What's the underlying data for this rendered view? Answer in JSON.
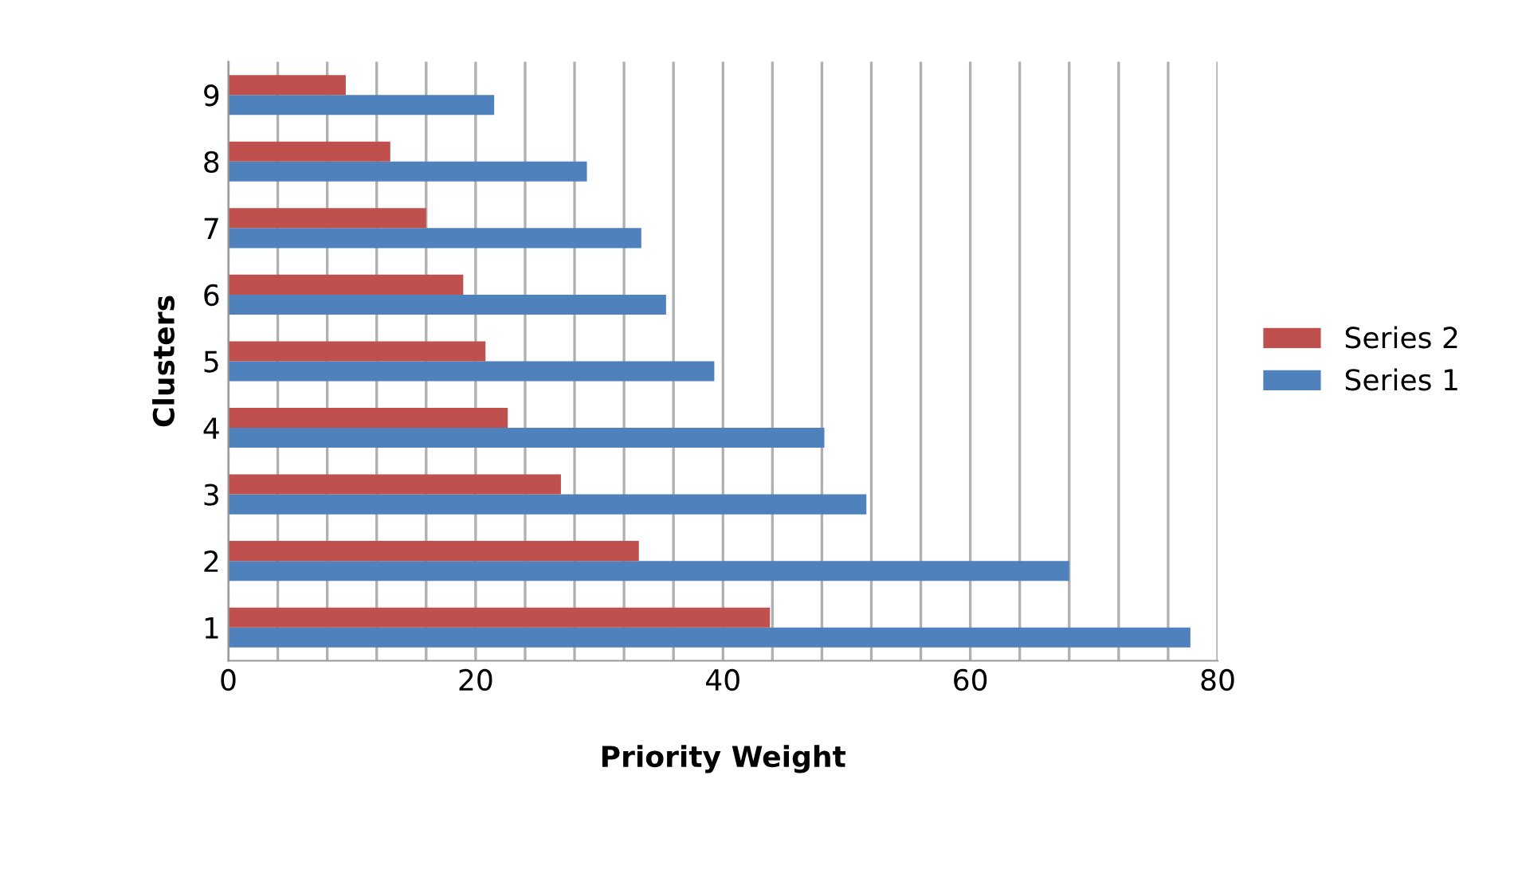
{
  "chart_data": {
    "type": "bar",
    "orientation": "horizontal",
    "xlabel": "Priority Weight",
    "ylabel": "Clusters",
    "categories": [
      "9",
      "8",
      "7",
      "6",
      "5",
      "4",
      "3",
      "2",
      "1"
    ],
    "series": [
      {
        "name": "Series 1",
        "color": "#4f81bd",
        "values": [
          21.5,
          29.0,
          33.4,
          35.4,
          39.3,
          48.2,
          51.6,
          68.0,
          77.8
        ]
      },
      {
        "name": "Series 2",
        "color": "#c0504d",
        "values": [
          9.5,
          13.1,
          16.0,
          19.0,
          20.8,
          22.6,
          26.9,
          33.2,
          43.8
        ]
      }
    ],
    "xlim": [
      0,
      80
    ],
    "xticks": [
      0,
      {
        "value": 4,
        "label": null
      },
      {
        "value": 8,
        "label": null
      },
      {
        "value": 12,
        "label": null
      },
      {
        "value": 16,
        "label": null
      },
      20,
      {
        "value": 24,
        "label": null
      },
      {
        "value": 28,
        "label": null
      },
      {
        "value": 32,
        "label": null
      },
      {
        "value": 36,
        "label": null
      },
      40,
      {
        "value": 44,
        "label": null
      },
      {
        "value": 48,
        "label": null
      },
      {
        "value": 52,
        "label": null
      },
      {
        "value": 56,
        "label": null
      },
      60,
      {
        "value": 64,
        "label": null
      },
      {
        "value": 68,
        "label": null
      },
      {
        "value": 72,
        "label": null
      },
      {
        "value": 76,
        "label": null
      },
      80
    ],
    "grid": "x",
    "legend": "right"
  }
}
